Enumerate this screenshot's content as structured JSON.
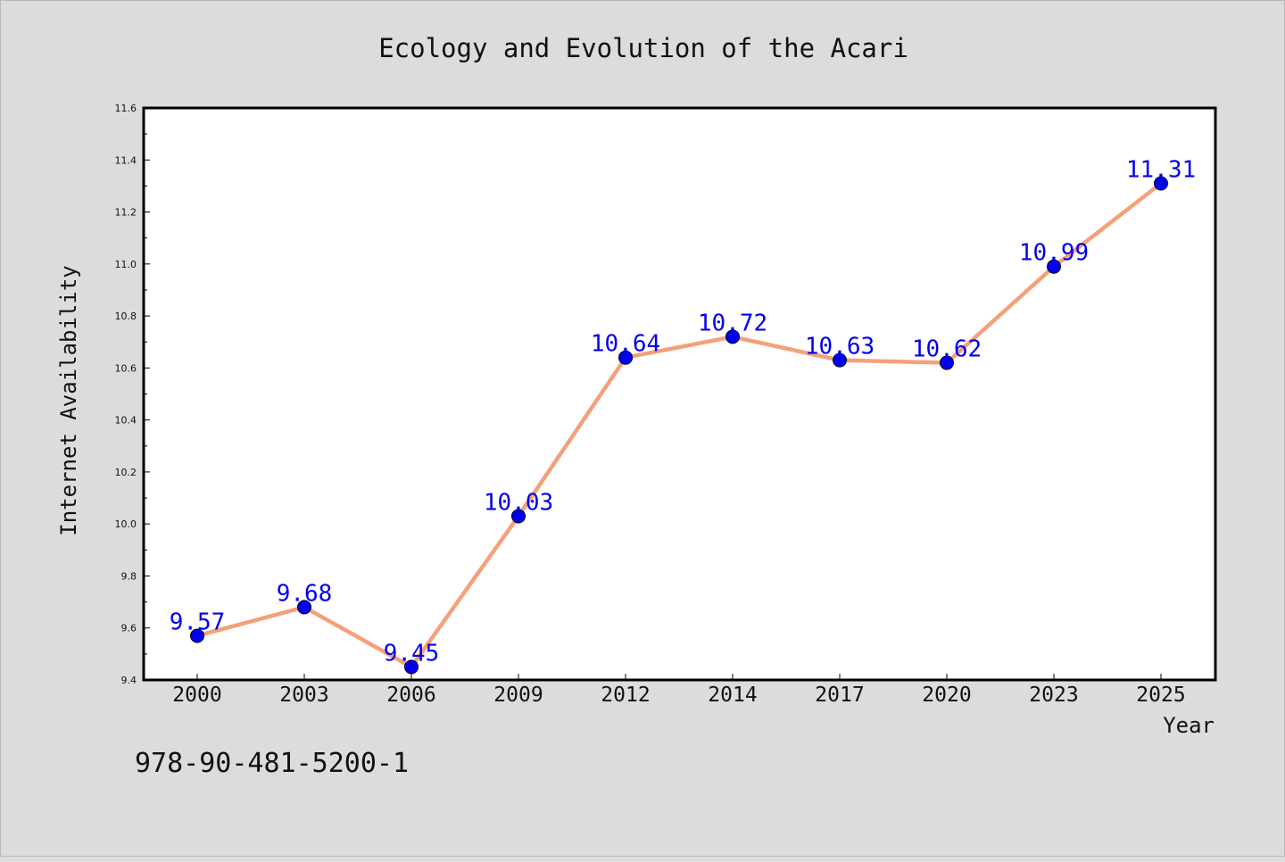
{
  "chart_data": {
    "type": "line",
    "title": "Ecology and Evolution of the Acari",
    "xlabel": "Year",
    "ylabel": "Internet Availability",
    "categories": [
      "2000",
      "2003",
      "2006",
      "2009",
      "2012",
      "2014",
      "2017",
      "2020",
      "2023",
      "2025"
    ],
    "values": [
      9.57,
      9.68,
      9.45,
      10.03,
      10.64,
      10.72,
      10.63,
      10.62,
      10.99,
      11.31
    ],
    "data_labels": [
      "9.57",
      "9.68",
      "9.45",
      "10.03",
      "10.64",
      "10.72",
      "10.63",
      "10.62",
      "10.99",
      "11.31"
    ],
    "ylim": [
      9.4,
      11.6
    ],
    "y_ticks": [
      "9.4",
      "9.6",
      "9.8",
      "10.0",
      "10.2",
      "10.4",
      "10.6",
      "10.8",
      "11.0",
      "11.2",
      "11.4",
      "11.6"
    ],
    "grid": false,
    "line_color": "#f4a07a",
    "marker_color": "#0000ee",
    "label_color": "#0000ee"
  },
  "footnote": "978-90-481-5200-1"
}
